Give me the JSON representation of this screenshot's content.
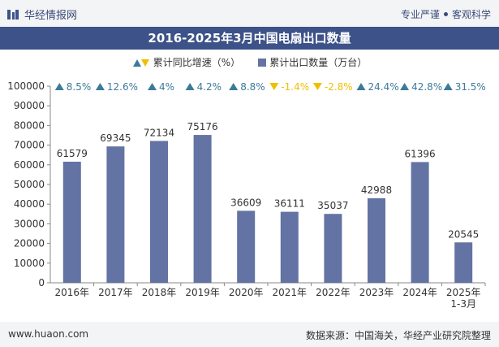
{
  "header": {
    "brand": "华经情报网",
    "tagline_left": "专业严谨",
    "tagline_right": "客观科学"
  },
  "chart_data": {
    "type": "bar",
    "title": "2016-2025年3月中国电扇出口数量",
    "categories": [
      "2016年",
      "2017年",
      "2018年",
      "2019年",
      "2020年",
      "2021年",
      "2022年",
      "2023年",
      "2024年",
      "2025年\n1-3月"
    ],
    "series": [
      {
        "name": "累计出口数量（万台）",
        "values": [
          61579,
          69345,
          72134,
          75176,
          36609,
          36111,
          35037,
          42988,
          61396,
          20545
        ],
        "color": "#6373a3"
      }
    ],
    "growth": {
      "name": "累计同比增速（%）",
      "labels": [
        "8.5%",
        "12.6%",
        "4%",
        "4.2%",
        "8.8%",
        "-1.4%",
        "-2.8%",
        "24.4%",
        "42.8%",
        "31.5%"
      ],
      "direction": [
        "up",
        "up",
        "up",
        "up",
        "up",
        "down",
        "down",
        "up",
        "up",
        "up"
      ],
      "up_color": "#3c7a9a",
      "down_color": "#f0c000"
    },
    "y_ticks": [
      0,
      10000,
      20000,
      30000,
      40000,
      50000,
      60000,
      70000,
      80000,
      90000,
      100000
    ],
    "ylim": [
      0,
      100000
    ],
    "xlabel": "",
    "ylabel": ""
  },
  "footer": {
    "url": "www.huaon.com",
    "source": "数据来源：中国海关，华经产业研究院整理"
  }
}
